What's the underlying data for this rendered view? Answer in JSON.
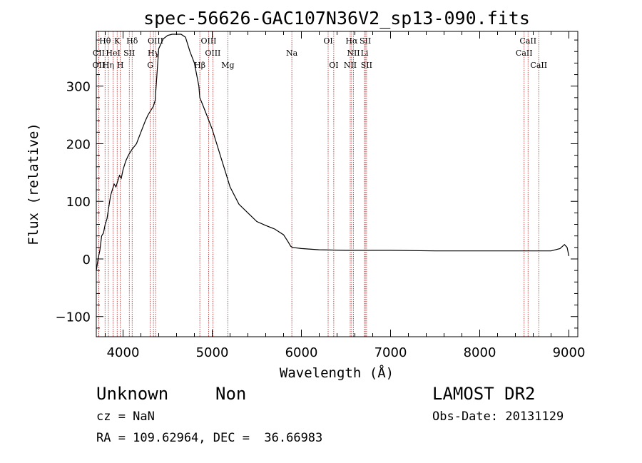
{
  "chart_data": {
    "type": "line",
    "title": "spec-56626-GAC107N36V2_sp13-090.fits",
    "xlabel": "Wavelength (Å)",
    "ylabel": "Flux (relative)",
    "xlim": [
      3700,
      9100
    ],
    "ylim": [
      -135,
      395
    ],
    "xticks": [
      4000,
      5000,
      6000,
      7000,
      8000,
      9000
    ],
    "yticks": [
      -100,
      0,
      100,
      200,
      300
    ],
    "series": [
      {
        "name": "flux",
        "x": [
          3700,
          3720,
          3740,
          3760,
          3780,
          3800,
          3820,
          3840,
          3860,
          3880,
          3900,
          3920,
          3940,
          3960,
          3980,
          4000,
          4030,
          4060,
          4100,
          4150,
          4200,
          4250,
          4280,
          4300,
          4320,
          4340,
          4360,
          4380,
          4400,
          4450,
          4500,
          4550,
          4600,
          4650,
          4700,
          4750,
          4800,
          4850,
          4861,
          4900,
          4950,
          5000,
          5050,
          5100,
          5150,
          5200,
          5300,
          5400,
          5500,
          5600,
          5700,
          5800,
          5850,
          5880,
          5900,
          6000,
          6200,
          6500,
          7000,
          7500,
          8000,
          8500,
          8800,
          8900,
          8950,
          8980,
          9000
        ],
        "y": [
          -20,
          0,
          15,
          40,
          45,
          60,
          70,
          90,
          110,
          120,
          130,
          125,
          135,
          145,
          140,
          155,
          170,
          180,
          190,
          200,
          220,
          240,
          250,
          255,
          260,
          265,
          275,
          320,
          365,
          382,
          388,
          390,
          390,
          390,
          385,
          360,
          340,
          300,
          280,
          265,
          245,
          225,
          200,
          175,
          150,
          125,
          95,
          80,
          65,
          58,
          52,
          42,
          30,
          22,
          20,
          18,
          16,
          15,
          15,
          14,
          14,
          14,
          14,
          18,
          25,
          20,
          5
        ]
      }
    ],
    "lines": [
      {
        "label": "Hθ",
        "wavelength": 3798,
        "row": 1
      },
      {
        "label": "K",
        "wavelength": 3934,
        "row": 1
      },
      {
        "label": "Hδ",
        "wavelength": 4102,
        "row": 1
      },
      {
        "label": "OIII",
        "wavelength": 4364,
        "row": 1
      },
      {
        "label": "OIII",
        "wavelength": 4960,
        "row": 1
      },
      {
        "label": "OI",
        "wavelength": 6300,
        "row": 1
      },
      {
        "label": "Hα",
        "wavelength": 6563,
        "row": 1
      },
      {
        "label": "SII",
        "wavelength": 6717,
        "row": 1
      },
      {
        "label": "CaII",
        "wavelength": 8542,
        "row": 1
      },
      {
        "label": "CII",
        "wavelength": 3727,
        "row": 2
      },
      {
        "label": "HeI",
        "wavelength": 3889,
        "row": 2
      },
      {
        "label": "SII",
        "wavelength": 4070,
        "row": 2
      },
      {
        "label": "Hγ",
        "wavelength": 4341,
        "row": 2
      },
      {
        "label": "OIII",
        "wavelength": 5007,
        "row": 2
      },
      {
        "label": "Na",
        "wavelength": 5893,
        "row": 2
      },
      {
        "label": "NII",
        "wavelength": 6584,
        "row": 2
      },
      {
        "label": "Li",
        "wavelength": 6708,
        "row": 2
      },
      {
        "label": "CaII",
        "wavelength": 8498,
        "row": 2
      },
      {
        "label": "OII",
        "wavelength": 3727,
        "row": 3
      },
      {
        "label": "Hη",
        "wavelength": 3835,
        "row": 3
      },
      {
        "label": "H",
        "wavelength": 3969,
        "row": 3
      },
      {
        "label": "G",
        "wavelength": 4305,
        "row": 3
      },
      {
        "label": "Hβ",
        "wavelength": 4861,
        "row": 3
      },
      {
        "label": "Mg",
        "wavelength": 5175,
        "row": 3
      },
      {
        "label": "OI",
        "wavelength": 6363,
        "row": 3
      },
      {
        "label": "NII",
        "wavelength": 6548,
        "row": 3
      },
      {
        "label": "SII",
        "wavelength": 6731,
        "row": 3
      },
      {
        "label": "CaII",
        "wavelength": 8662,
        "row": 3
      }
    ]
  },
  "info": {
    "object_class": "Unknown",
    "object_subclass": "Non",
    "survey": "LAMOST DR2",
    "cz": "cz = NaN",
    "obs_date": "Obs-Date: 20131129",
    "coords": "RA = 109.62964, DEC =  36.66983"
  },
  "colors": {
    "line_marker": "#b22222",
    "axes": "#000000",
    "spectrum": "#000000"
  }
}
